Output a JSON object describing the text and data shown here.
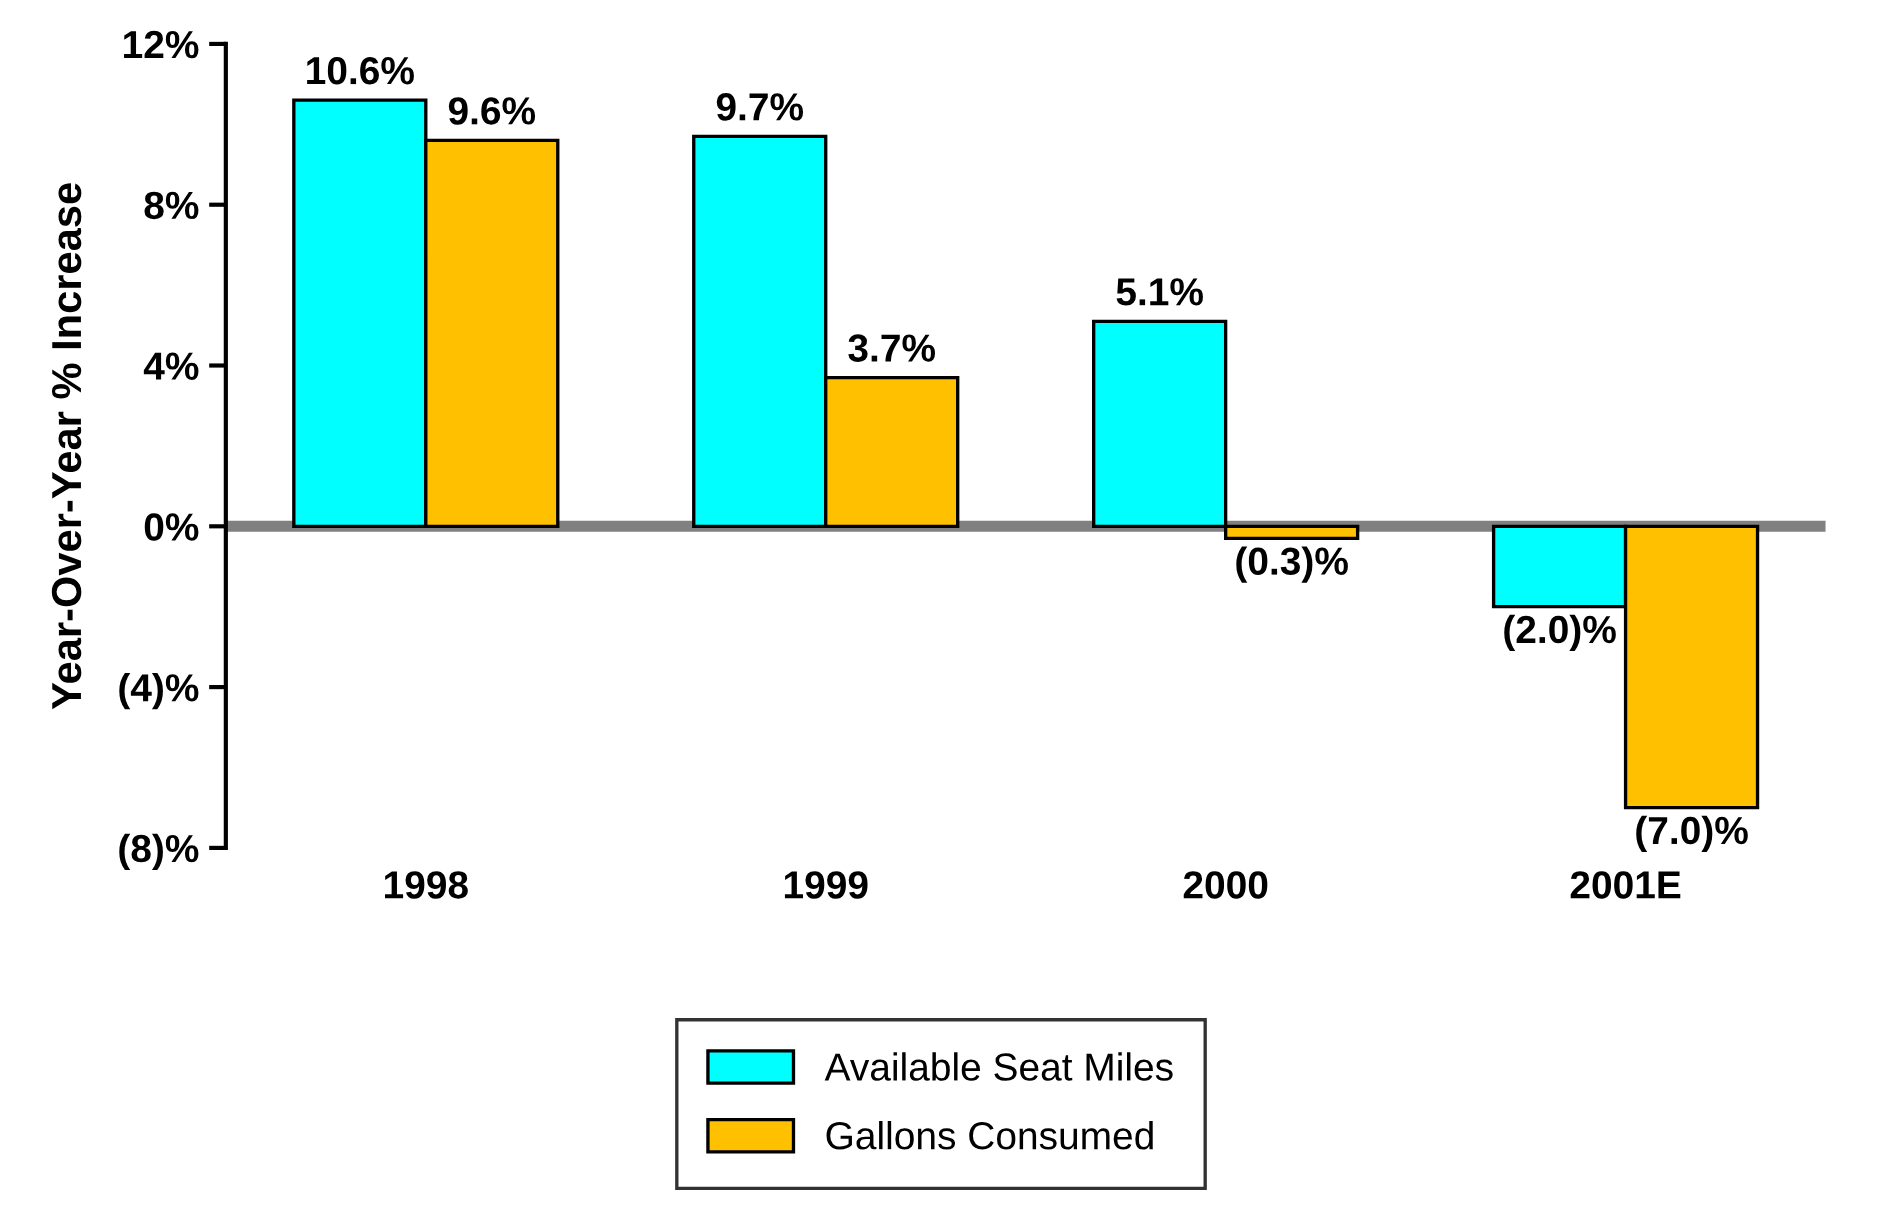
{
  "chart_data": {
    "type": "bar",
    "categories": [
      "1998",
      "1999",
      "2000",
      "2001E"
    ],
    "ylabel": "Year-Over-Year % Increase",
    "ylim": [
      -8,
      12
    ],
    "yticks": [
      {
        "value": -8,
        "label": "(8)%"
      },
      {
        "value": -4,
        "label": "(4)%"
      },
      {
        "value": 0,
        "label": "0%"
      },
      {
        "value": 4,
        "label": "4%"
      },
      {
        "value": 8,
        "label": "8%"
      },
      {
        "value": 12,
        "label": "12%"
      }
    ],
    "series": [
      {
        "name": "Available Seat Miles",
        "color": "#00ffff",
        "values": [
          10.6,
          9.7,
          5.1,
          -2.0
        ],
        "value_labels": [
          "10.6%",
          "9.7%",
          "5.1%",
          "(2.0)%"
        ]
      },
      {
        "name": "Gallons Consumed",
        "color": "#ffc000",
        "values": [
          9.6,
          3.7,
          -0.3,
          -7.0
        ],
        "value_labels": [
          "9.6%",
          "3.7%",
          "(0.3)%",
          "(7.0)%"
        ]
      }
    ],
    "ref_lines": [
      {
        "axis": "y",
        "value": 0,
        "color": "#808080"
      }
    ],
    "legend": "bottom"
  }
}
